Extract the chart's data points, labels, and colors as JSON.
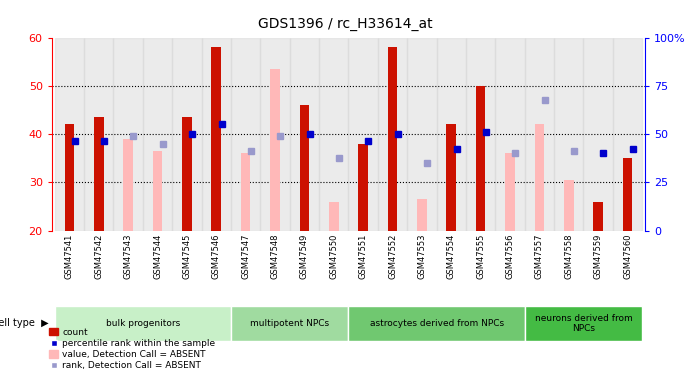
{
  "title": "GDS1396 / rc_H33614_at",
  "samples": [
    "GSM47541",
    "GSM47542",
    "GSM47543",
    "GSM47544",
    "GSM47545",
    "GSM47546",
    "GSM47547",
    "GSM47548",
    "GSM47549",
    "GSM47550",
    "GSM47551",
    "GSM47552",
    "GSM47553",
    "GSM47554",
    "GSM47555",
    "GSM47556",
    "GSM47557",
    "GSM47558",
    "GSM47559",
    "GSM47560"
  ],
  "count_present": [
    42,
    43.5,
    null,
    null,
    43.5,
    58,
    null,
    null,
    46,
    null,
    38,
    58,
    null,
    42,
    50,
    null,
    null,
    null,
    26,
    35
  ],
  "count_absent": [
    null,
    null,
    39,
    36.5,
    null,
    null,
    36,
    53.5,
    null,
    26,
    null,
    null,
    26.5,
    null,
    null,
    36,
    42,
    30.5,
    null,
    null
  ],
  "rank_present": [
    38.5,
    38.5,
    null,
    null,
    40,
    42,
    null,
    null,
    40,
    null,
    38.5,
    40,
    null,
    37,
    40.5,
    null,
    null,
    null,
    36,
    37
  ],
  "rank_absent": [
    null,
    null,
    39.5,
    38,
    null,
    null,
    36.5,
    39.5,
    null,
    35,
    null,
    null,
    34,
    null,
    null,
    36,
    47,
    36.5,
    null,
    null
  ],
  "cell_groups": [
    {
      "label": "bulk progenitors",
      "start": 0,
      "end": 6,
      "color": "#c8f0c8"
    },
    {
      "label": "multipotent NPCs",
      "start": 6,
      "end": 10,
      "color": "#a0dba0"
    },
    {
      "label": "astrocytes derived from NPCs",
      "start": 10,
      "end": 16,
      "color": "#70c870"
    },
    {
      "label": "neurons derived from\nNPCs",
      "start": 16,
      "end": 20,
      "color": "#44bb44"
    }
  ],
  "ylim_left": [
    20,
    60
  ],
  "ylim_right": [
    0,
    100
  ],
  "y_ticks_left": [
    20,
    30,
    40,
    50,
    60
  ],
  "y_ticks_right": [
    0,
    25,
    50,
    75,
    100
  ],
  "bar_color_present": "#cc1100",
  "bar_color_absent": "#ffb8b8",
  "rank_color_present": "#0000cc",
  "rank_color_absent": "#9999cc",
  "bar_width": 0.55,
  "bg_xtick_color": "#d8d8d8"
}
